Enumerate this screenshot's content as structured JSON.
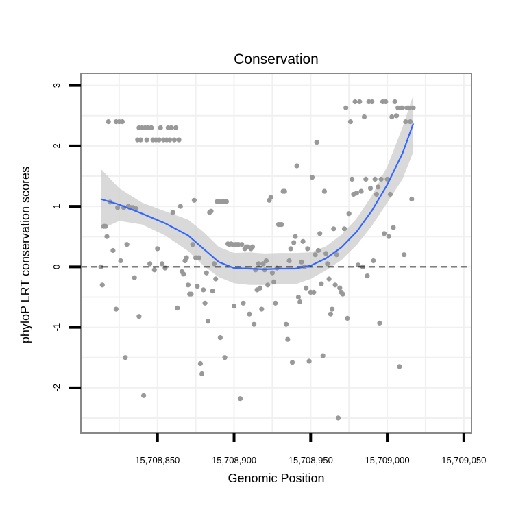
{
  "chart_data": {
    "type": "scatter",
    "title": "Conservation",
    "xlabel": "Genomic Position",
    "ylabel": "phyloP LRT conservation scores",
    "xlim": [
      15708800,
      15709055
    ],
    "ylim": [
      -2.75,
      3.2
    ],
    "x_ticks": [
      15708850,
      15708900,
      15708950,
      15709000,
      15709050
    ],
    "x_tick_labels": [
      "15,708,850",
      "15,708,900",
      "15,708,950",
      "15,709,000",
      "15,709,050"
    ],
    "y_ticks": [
      -2,
      -1,
      0,
      1,
      2,
      3
    ],
    "y_tick_labels": [
      "-2",
      "-1",
      "0",
      "1",
      "2",
      "3"
    ],
    "reference_line": {
      "y": 0,
      "style": "dashed",
      "color": "#000000"
    },
    "grid": true,
    "colors": {
      "points": "#999999",
      "smooth": "#3366ff",
      "band": "#cccccc",
      "frame": "#888888",
      "grid": "#f0f0f0"
    },
    "series": [
      {
        "name": "scores",
        "points": [
          [
            15708813,
            0.0
          ],
          [
            15708814,
            -0.3
          ],
          [
            15708815,
            0.67
          ],
          [
            15708816,
            0.67
          ],
          [
            15708817,
            0.5
          ],
          [
            15708818,
            2.4
          ],
          [
            15708819,
            1.07
          ],
          [
            15708821,
            0.27
          ],
          [
            15708823,
            -0.7
          ],
          [
            15708823,
            2.4
          ],
          [
            15708824,
            0.98
          ],
          [
            15708825,
            2.4
          ],
          [
            15708826,
            0.1
          ],
          [
            15708827,
            2.4
          ],
          [
            15708828,
            0.98
          ],
          [
            15708829,
            -1.5
          ],
          [
            15708830,
            0.37
          ],
          [
            15708831,
            1.0
          ],
          [
            15708832,
            0.98
          ],
          [
            15708833,
            0.98
          ],
          [
            15708834,
            0.98
          ],
          [
            15708835,
            -0.18
          ],
          [
            15708836,
            0.96
          ],
          [
            15708837,
            2.1
          ],
          [
            15708838,
            2.3
          ],
          [
            15708838,
            -0.82
          ],
          [
            15708839,
            2.1
          ],
          [
            15708840,
            2.3
          ],
          [
            15708841,
            -2.13
          ],
          [
            15708842,
            2.3
          ],
          [
            15708843,
            2.1
          ],
          [
            15708844,
            2.3
          ],
          [
            15708845,
            0.05
          ],
          [
            15708846,
            2.3
          ],
          [
            15708847,
            2.1
          ],
          [
            15708848,
            -0.05
          ],
          [
            15708849,
            2.1
          ],
          [
            15708850,
            0.3
          ],
          [
            15708851,
            2.1
          ],
          [
            15708852,
            2.3
          ],
          [
            15708853,
            0.05
          ],
          [
            15708854,
            2.1
          ],
          [
            15708855,
            -0.02
          ],
          [
            15708856,
            2.1
          ],
          [
            15708857,
            2.3
          ],
          [
            15708858,
            2.1
          ],
          [
            15708859,
            2.3
          ],
          [
            15708860,
            0.9
          ],
          [
            15708861,
            2.1
          ],
          [
            15708862,
            2.3
          ],
          [
            15708863,
            -0.68
          ],
          [
            15708864,
            2.1
          ],
          [
            15708865,
            1.0
          ],
          [
            15708866,
            -0.08
          ],
          [
            15708867,
            -0.12
          ],
          [
            15708868,
            0.1
          ],
          [
            15708869,
            0.15
          ],
          [
            15708870,
            -0.3
          ],
          [
            15708871,
            -0.45
          ],
          [
            15708872,
            -0.45
          ],
          [
            15708873,
            0.37
          ],
          [
            15708874,
            1.1
          ],
          [
            15708875,
            0.15
          ],
          [
            15708876,
            -0.32
          ],
          [
            15708877,
            0.15
          ],
          [
            15708878,
            -1.6
          ],
          [
            15708879,
            -1.77
          ],
          [
            15708880,
            -0.38
          ],
          [
            15708881,
            -0.6
          ],
          [
            15708882,
            -0.1
          ],
          [
            15708883,
            -0.9
          ],
          [
            15708884,
            0.9
          ],
          [
            15708885,
            0.92
          ],
          [
            15708886,
            -0.4
          ],
          [
            15708887,
            0.05
          ],
          [
            15708888,
            -0.2
          ],
          [
            15708889,
            1.08
          ],
          [
            15708890,
            1.08
          ],
          [
            15708891,
            -1.17
          ],
          [
            15708892,
            1.08
          ],
          [
            15708893,
            1.08
          ],
          [
            15708894,
            -1.5
          ],
          [
            15708895,
            1.08
          ],
          [
            15708896,
            0.38
          ],
          [
            15708897,
            0.37
          ],
          [
            15708898,
            0.38
          ],
          [
            15708899,
            0.37
          ],
          [
            15708900,
            -0.65
          ],
          [
            15708901,
            0.37
          ],
          [
            15708902,
            0.37
          ],
          [
            15708903,
            0.37
          ],
          [
            15708904,
            -2.18
          ],
          [
            15708905,
            0.37
          ],
          [
            15708906,
            -0.6
          ],
          [
            15708907,
            0.3
          ],
          [
            15708908,
            0.33
          ],
          [
            15708909,
            0.33
          ],
          [
            15708910,
            -0.78
          ],
          [
            15708911,
            0.3
          ],
          [
            15708912,
            0.33
          ],
          [
            15708913,
            -0.95
          ],
          [
            15708914,
            -0.05
          ],
          [
            15708915,
            -0.38
          ],
          [
            15708916,
            0.05
          ],
          [
            15708917,
            -0.35
          ],
          [
            15708918,
            -0.7
          ],
          [
            15708919,
            0.05
          ],
          [
            15708920,
            -0.05
          ],
          [
            15708921,
            0.1
          ],
          [
            15708922,
            -0.3
          ],
          [
            15708923,
            1.1
          ],
          [
            15708924,
            1.15
          ],
          [
            15708925,
            -0.1
          ],
          [
            15708926,
            -0.25
          ],
          [
            15708927,
            -0.6
          ],
          [
            15708928,
            -0.02
          ],
          [
            15708929,
            0.7
          ],
          [
            15708930,
            0.7
          ],
          [
            15708931,
            0.7
          ],
          [
            15708932,
            1.25
          ],
          [
            15708933,
            1.25
          ],
          [
            15708934,
            -0.95
          ],
          [
            15708935,
            -1.2
          ],
          [
            15708936,
            0.1
          ],
          [
            15708937,
            0.3
          ],
          [
            15708938,
            -1.58
          ],
          [
            15708939,
            0.4
          ],
          [
            15708940,
            0.5
          ],
          [
            15708941,
            1.67
          ],
          [
            15708942,
            -0.5
          ],
          [
            15708943,
            -0.58
          ],
          [
            15708944,
            0.08
          ],
          [
            15708945,
            0.42
          ],
          [
            15708946,
            0.0
          ],
          [
            15708947,
            -0.35
          ],
          [
            15708948,
            0.3
          ],
          [
            15708949,
            -1.56
          ],
          [
            15708950,
            -0.42
          ],
          [
            15708951,
            1.48
          ],
          [
            15708952,
            -0.42
          ],
          [
            15708953,
            0.2
          ],
          [
            15708954,
            2.06
          ],
          [
            15708955,
            0.27
          ],
          [
            15708956,
            0.55
          ],
          [
            15708957,
            -0.28
          ],
          [
            15708958,
            -1.47
          ],
          [
            15708959,
            1.25
          ],
          [
            15708960,
            0.22
          ],
          [
            15708961,
            0.05
          ],
          [
            15708962,
            -0.2
          ],
          [
            15708963,
            -0.78
          ],
          [
            15708964,
            -0.7
          ],
          [
            15708965,
            0.63
          ],
          [
            15708966,
            -0.3
          ],
          [
            15708967,
            0.2
          ],
          [
            15708968,
            -2.5
          ],
          [
            15708969,
            -0.35
          ],
          [
            15708970,
            -0.42
          ],
          [
            15708971,
            -0.45
          ],
          [
            15708972,
            0.63
          ],
          [
            15708973,
            2.63
          ],
          [
            15708974,
            -0.85
          ],
          [
            15708975,
            0.88
          ],
          [
            15708976,
            2.4
          ],
          [
            15708977,
            1.45
          ],
          [
            15708978,
            1.2
          ],
          [
            15708979,
            2.73
          ],
          [
            15708980,
            1.22
          ],
          [
            15708981,
            0.03
          ],
          [
            15708982,
            2.73
          ],
          [
            15708983,
            1.25
          ],
          [
            15708984,
            0.0
          ],
          [
            15708985,
            2.48
          ],
          [
            15708986,
            1.45
          ],
          [
            15708987,
            -0.15
          ],
          [
            15708988,
            2.73
          ],
          [
            15708989,
            1.3
          ],
          [
            15708990,
            2.73
          ],
          [
            15708991,
            0.1
          ],
          [
            15708992,
            1.45
          ],
          [
            15708993,
            1.2
          ],
          [
            15708994,
            1.32
          ],
          [
            15708995,
            -0.93
          ],
          [
            15708996,
            1.45
          ],
          [
            15708997,
            2.73
          ],
          [
            15708998,
            0.55
          ],
          [
            15708999,
            2.73
          ],
          [
            15709000,
            1.45
          ],
          [
            15709001,
            0.5
          ],
          [
            15709002,
            1.2
          ],
          [
            15709003,
            2.48
          ],
          [
            15709004,
            0.65
          ],
          [
            15709005,
            2.73
          ],
          [
            15709006,
            2.5
          ],
          [
            15709007,
            2.63
          ],
          [
            15709008,
            -1.65
          ],
          [
            15709009,
            2.63
          ],
          [
            15709010,
            2.63
          ],
          [
            15709011,
            0.2
          ],
          [
            15709012,
            2.4
          ],
          [
            15709013,
            2.63
          ],
          [
            15709014,
            2.63
          ],
          [
            15709015,
            2.4
          ],
          [
            15709016,
            1.12
          ],
          [
            15709017,
            2.63
          ]
        ]
      }
    ],
    "smooth": {
      "method": "loess",
      "x": [
        15708813,
        15708825,
        15708840,
        15708855,
        15708870,
        15708880,
        15708890,
        15708900,
        15708910,
        15708920,
        15708930,
        15708940,
        15708950,
        15708960,
        15708970,
        15708980,
        15708990,
        15709000,
        15709010,
        15709017
      ],
      "y": [
        1.12,
        1.03,
        0.88,
        0.72,
        0.52,
        0.3,
        0.08,
        -0.02,
        -0.03,
        -0.04,
        -0.03,
        -0.03,
        0.02,
        0.14,
        0.32,
        0.58,
        0.93,
        1.36,
        1.88,
        2.37
      ],
      "lower": [
        0.62,
        0.76,
        0.7,
        0.52,
        0.26,
        0.02,
        -0.17,
        -0.27,
        -0.3,
        -0.3,
        -0.29,
        -0.29,
        -0.2,
        -0.06,
        0.11,
        0.36,
        0.68,
        1.06,
        1.45,
        1.9
      ],
      "upper": [
        1.62,
        1.3,
        1.06,
        0.92,
        0.78,
        0.58,
        0.33,
        0.23,
        0.24,
        0.22,
        0.23,
        0.23,
        0.24,
        0.34,
        0.53,
        0.8,
        1.18,
        1.66,
        2.31,
        2.84
      ]
    }
  }
}
